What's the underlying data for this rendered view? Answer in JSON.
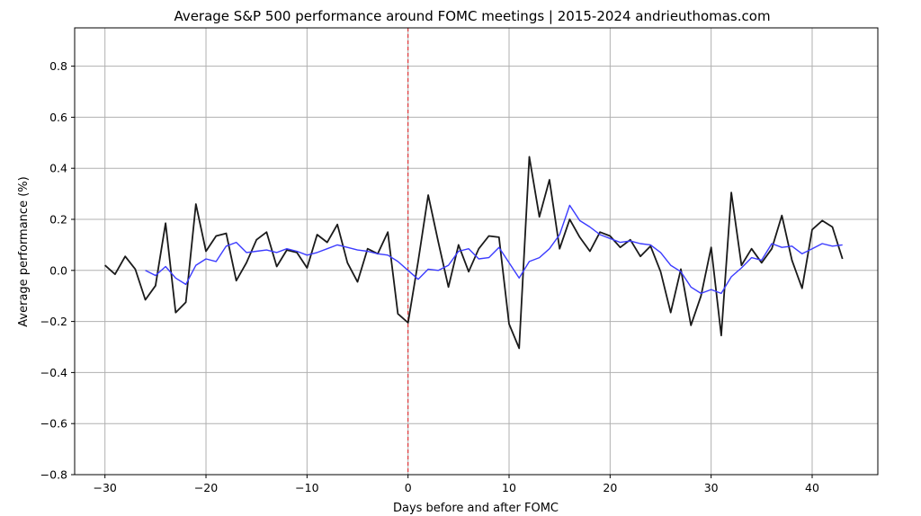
{
  "chart_data": {
    "type": "line",
    "title": "Average S&P 500 performance around FOMC meetings | 2015-2024 andrieuthomas.com",
    "xlabel": "Days before and after FOMC",
    "ylabel": "Average performance (%)",
    "xlim": [
      -33,
      46.5
    ],
    "ylim": [
      -0.8,
      0.95
    ],
    "xticks": [
      -30,
      -20,
      -10,
      0,
      10,
      20,
      30,
      40
    ],
    "xtick_labels": [
      "−30",
      "−20",
      "−10",
      "0",
      "10",
      "20",
      "30",
      "40"
    ],
    "yticks": [
      -0.8,
      -0.6,
      -0.4,
      -0.2,
      0.0,
      0.2,
      0.4,
      0.6,
      0.8
    ],
    "ytick_labels": [
      "−0.8",
      "−0.6",
      "−0.4",
      "−0.2",
      "0.0",
      "0.2",
      "0.4",
      "0.6",
      "0.8"
    ],
    "grid": true,
    "vline": {
      "x": 0,
      "color": "#e41a1c",
      "style": "dashed"
    },
    "series": [
      {
        "color": "#1a1a1a",
        "x": [
          -30,
          -29,
          -28,
          -27,
          -26,
          -25,
          -24,
          -23,
          -22,
          -21,
          -20,
          -19,
          -18,
          -17,
          -16,
          -15,
          -14,
          -13,
          -12,
          -11,
          -10,
          -9,
          -8,
          -7,
          -6,
          -5,
          -4,
          -3,
          -2,
          -1,
          0,
          1,
          2,
          3,
          4,
          5,
          6,
          7,
          8,
          9,
          10,
          11,
          12,
          13,
          14,
          15,
          16,
          17,
          18,
          19,
          20,
          21,
          22,
          23,
          24,
          25,
          26,
          27,
          28,
          29,
          30,
          31,
          32,
          33,
          34,
          35,
          36,
          37,
          38,
          39,
          40,
          41,
          42,
          43
        ],
        "values": [
          0.02,
          -0.015,
          0.055,
          0.005,
          -0.115,
          -0.06,
          0.185,
          -0.165,
          -0.125,
          0.26,
          0.075,
          0.135,
          0.145,
          -0.04,
          0.03,
          0.12,
          0.15,
          0.015,
          0.08,
          0.07,
          0.01,
          0.14,
          0.11,
          0.18,
          0.03,
          -0.045,
          0.085,
          0.065,
          0.15,
          -0.17,
          -0.205,
          0.035,
          0.295,
          0.11,
          -0.065,
          0.1,
          -0.005,
          0.085,
          0.135,
          0.13,
          -0.21,
          -0.305,
          0.445,
          0.21,
          0.355,
          0.085,
          0.2,
          0.13,
          0.075,
          0.15,
          0.135,
          0.09,
          0.12,
          0.055,
          0.095,
          -0.005,
          -0.165,
          0.005,
          -0.215,
          -0.1,
          0.09,
          -0.255,
          0.305,
          0.02,
          0.085,
          0.03,
          0.085,
          0.215,
          0.04,
          -0.07,
          0.16,
          0.195,
          0.17,
          0.045
        ]
      },
      {
        "color": "#3b3bff",
        "x": [
          -26,
          -25,
          -24,
          -23,
          -22,
          -21,
          -20,
          -19,
          -18,
          -17,
          -16,
          -15,
          -14,
          -13,
          -12,
          -11,
          -10,
          -9,
          -8,
          -7,
          -6,
          -5,
          -4,
          -3,
          -2,
          -1,
          0,
          1,
          2,
          3,
          4,
          5,
          6,
          7,
          8,
          9,
          10,
          11,
          12,
          13,
          14,
          15,
          16,
          17,
          18,
          19,
          20,
          21,
          22,
          23,
          24,
          25,
          26,
          27,
          28,
          29,
          30,
          31,
          32,
          33,
          34,
          35,
          36,
          37,
          38,
          39,
          40,
          41,
          42,
          43
        ],
        "values": [
          0.0,
          -0.02,
          0.015,
          -0.03,
          -0.055,
          0.02,
          0.045,
          0.035,
          0.095,
          0.11,
          0.07,
          0.075,
          0.08,
          0.07,
          0.085,
          0.075,
          0.06,
          0.07,
          0.085,
          0.1,
          0.09,
          0.08,
          0.075,
          0.065,
          0.06,
          0.035,
          0.0,
          -0.035,
          0.005,
          0.0,
          0.02,
          0.075,
          0.085,
          0.045,
          0.05,
          0.09,
          0.03,
          -0.03,
          0.035,
          0.05,
          0.085,
          0.14,
          0.255,
          0.195,
          0.17,
          0.14,
          0.125,
          0.11,
          0.115,
          0.105,
          0.1,
          0.07,
          0.02,
          -0.005,
          -0.065,
          -0.09,
          -0.075,
          -0.09,
          -0.025,
          0.01,
          0.05,
          0.04,
          0.105,
          0.09,
          0.095,
          0.065,
          0.085,
          0.105,
          0.095,
          0.1
        ]
      }
    ]
  }
}
